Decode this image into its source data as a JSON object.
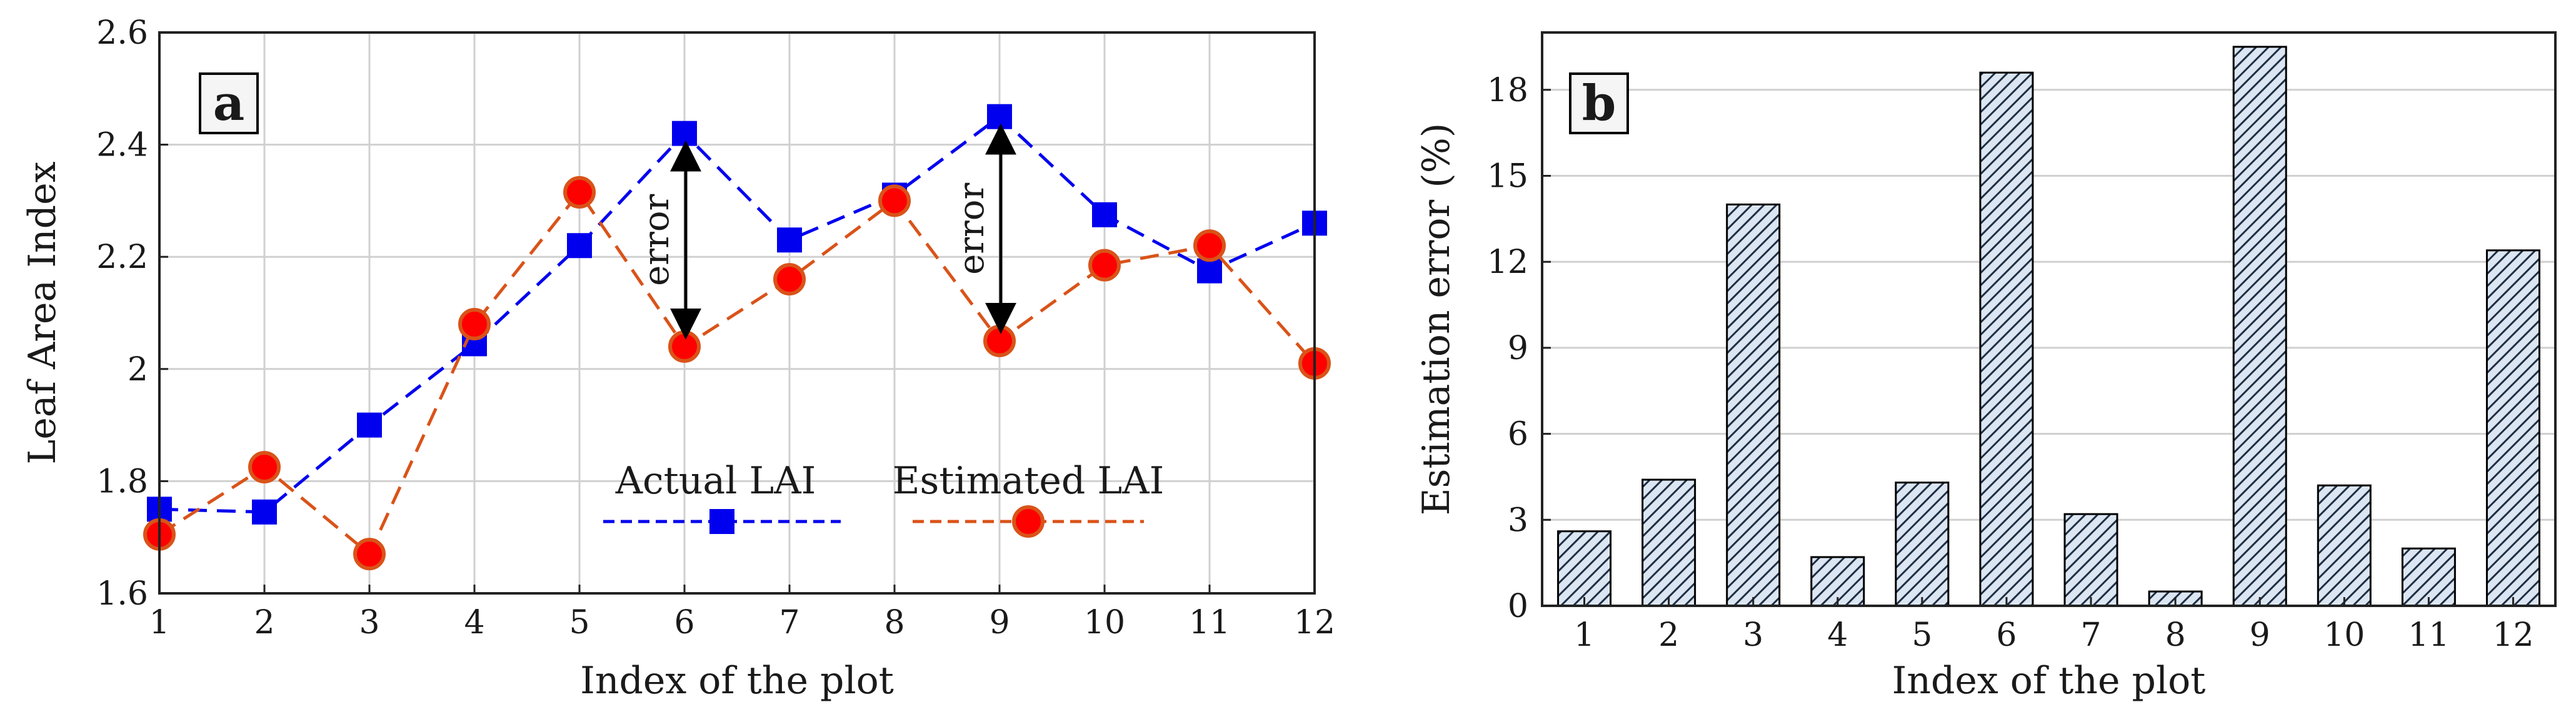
{
  "chart_data": [
    {
      "type": "line",
      "panel_label": "a",
      "title": "",
      "xlabel": "Index of the plot",
      "ylabel": "Leaf Area Index",
      "x": [
        1,
        2,
        3,
        4,
        5,
        6,
        7,
        8,
        9,
        10,
        11,
        12
      ],
      "xticks": [
        "1",
        "2",
        "3",
        "4",
        "5",
        "6",
        "7",
        "8",
        "9",
        "10",
        "11",
        "12"
      ],
      "yticks": [
        "1.6",
        "1.8",
        "2",
        "2.2",
        "2.4",
        "2.6"
      ],
      "xlim": [
        1,
        12
      ],
      "ylim": [
        1.6,
        2.6
      ],
      "grid": true,
      "legend_placement": "bottom-center",
      "series": [
        {
          "name": "Actual LAI",
          "color": "#0000ee",
          "marker": "square",
          "line": "dashed",
          "values": [
            1.75,
            1.745,
            1.9,
            2.045,
            2.22,
            2.42,
            2.23,
            2.31,
            2.45,
            2.275,
            2.175,
            2.26
          ]
        },
        {
          "name": "Estimated LAI",
          "color": "#d95319",
          "marker_fill": "#ff0000",
          "marker": "circle",
          "line": "dashed",
          "values": [
            1.705,
            1.825,
            1.67,
            2.08,
            2.315,
            2.04,
            2.16,
            2.3,
            2.05,
            2.185,
            2.22,
            2.01
          ]
        }
      ],
      "annotations": [
        {
          "text": "error",
          "x": 6
        },
        {
          "text": "error",
          "x": 9
        }
      ]
    },
    {
      "type": "bar",
      "panel_label": "b",
      "title": "",
      "xlabel": "Index of the plot",
      "ylabel": "Estimation error (%)",
      "categories": [
        "1",
        "2",
        "3",
        "4",
        "5",
        "6",
        "7",
        "8",
        "9",
        "10",
        "11",
        "12"
      ],
      "values": [
        2.6,
        4.4,
        14.0,
        1.7,
        4.3,
        18.6,
        3.2,
        0.5,
        19.5,
        4.2,
        2.0,
        12.4
      ],
      "yticks": [
        "0",
        "3",
        "6",
        "9",
        "12",
        "15",
        "18"
      ],
      "ylim": [
        0,
        20
      ],
      "grid": true,
      "bar_fill": "#dce6f2",
      "bar_hatch": "diagonal"
    }
  ]
}
